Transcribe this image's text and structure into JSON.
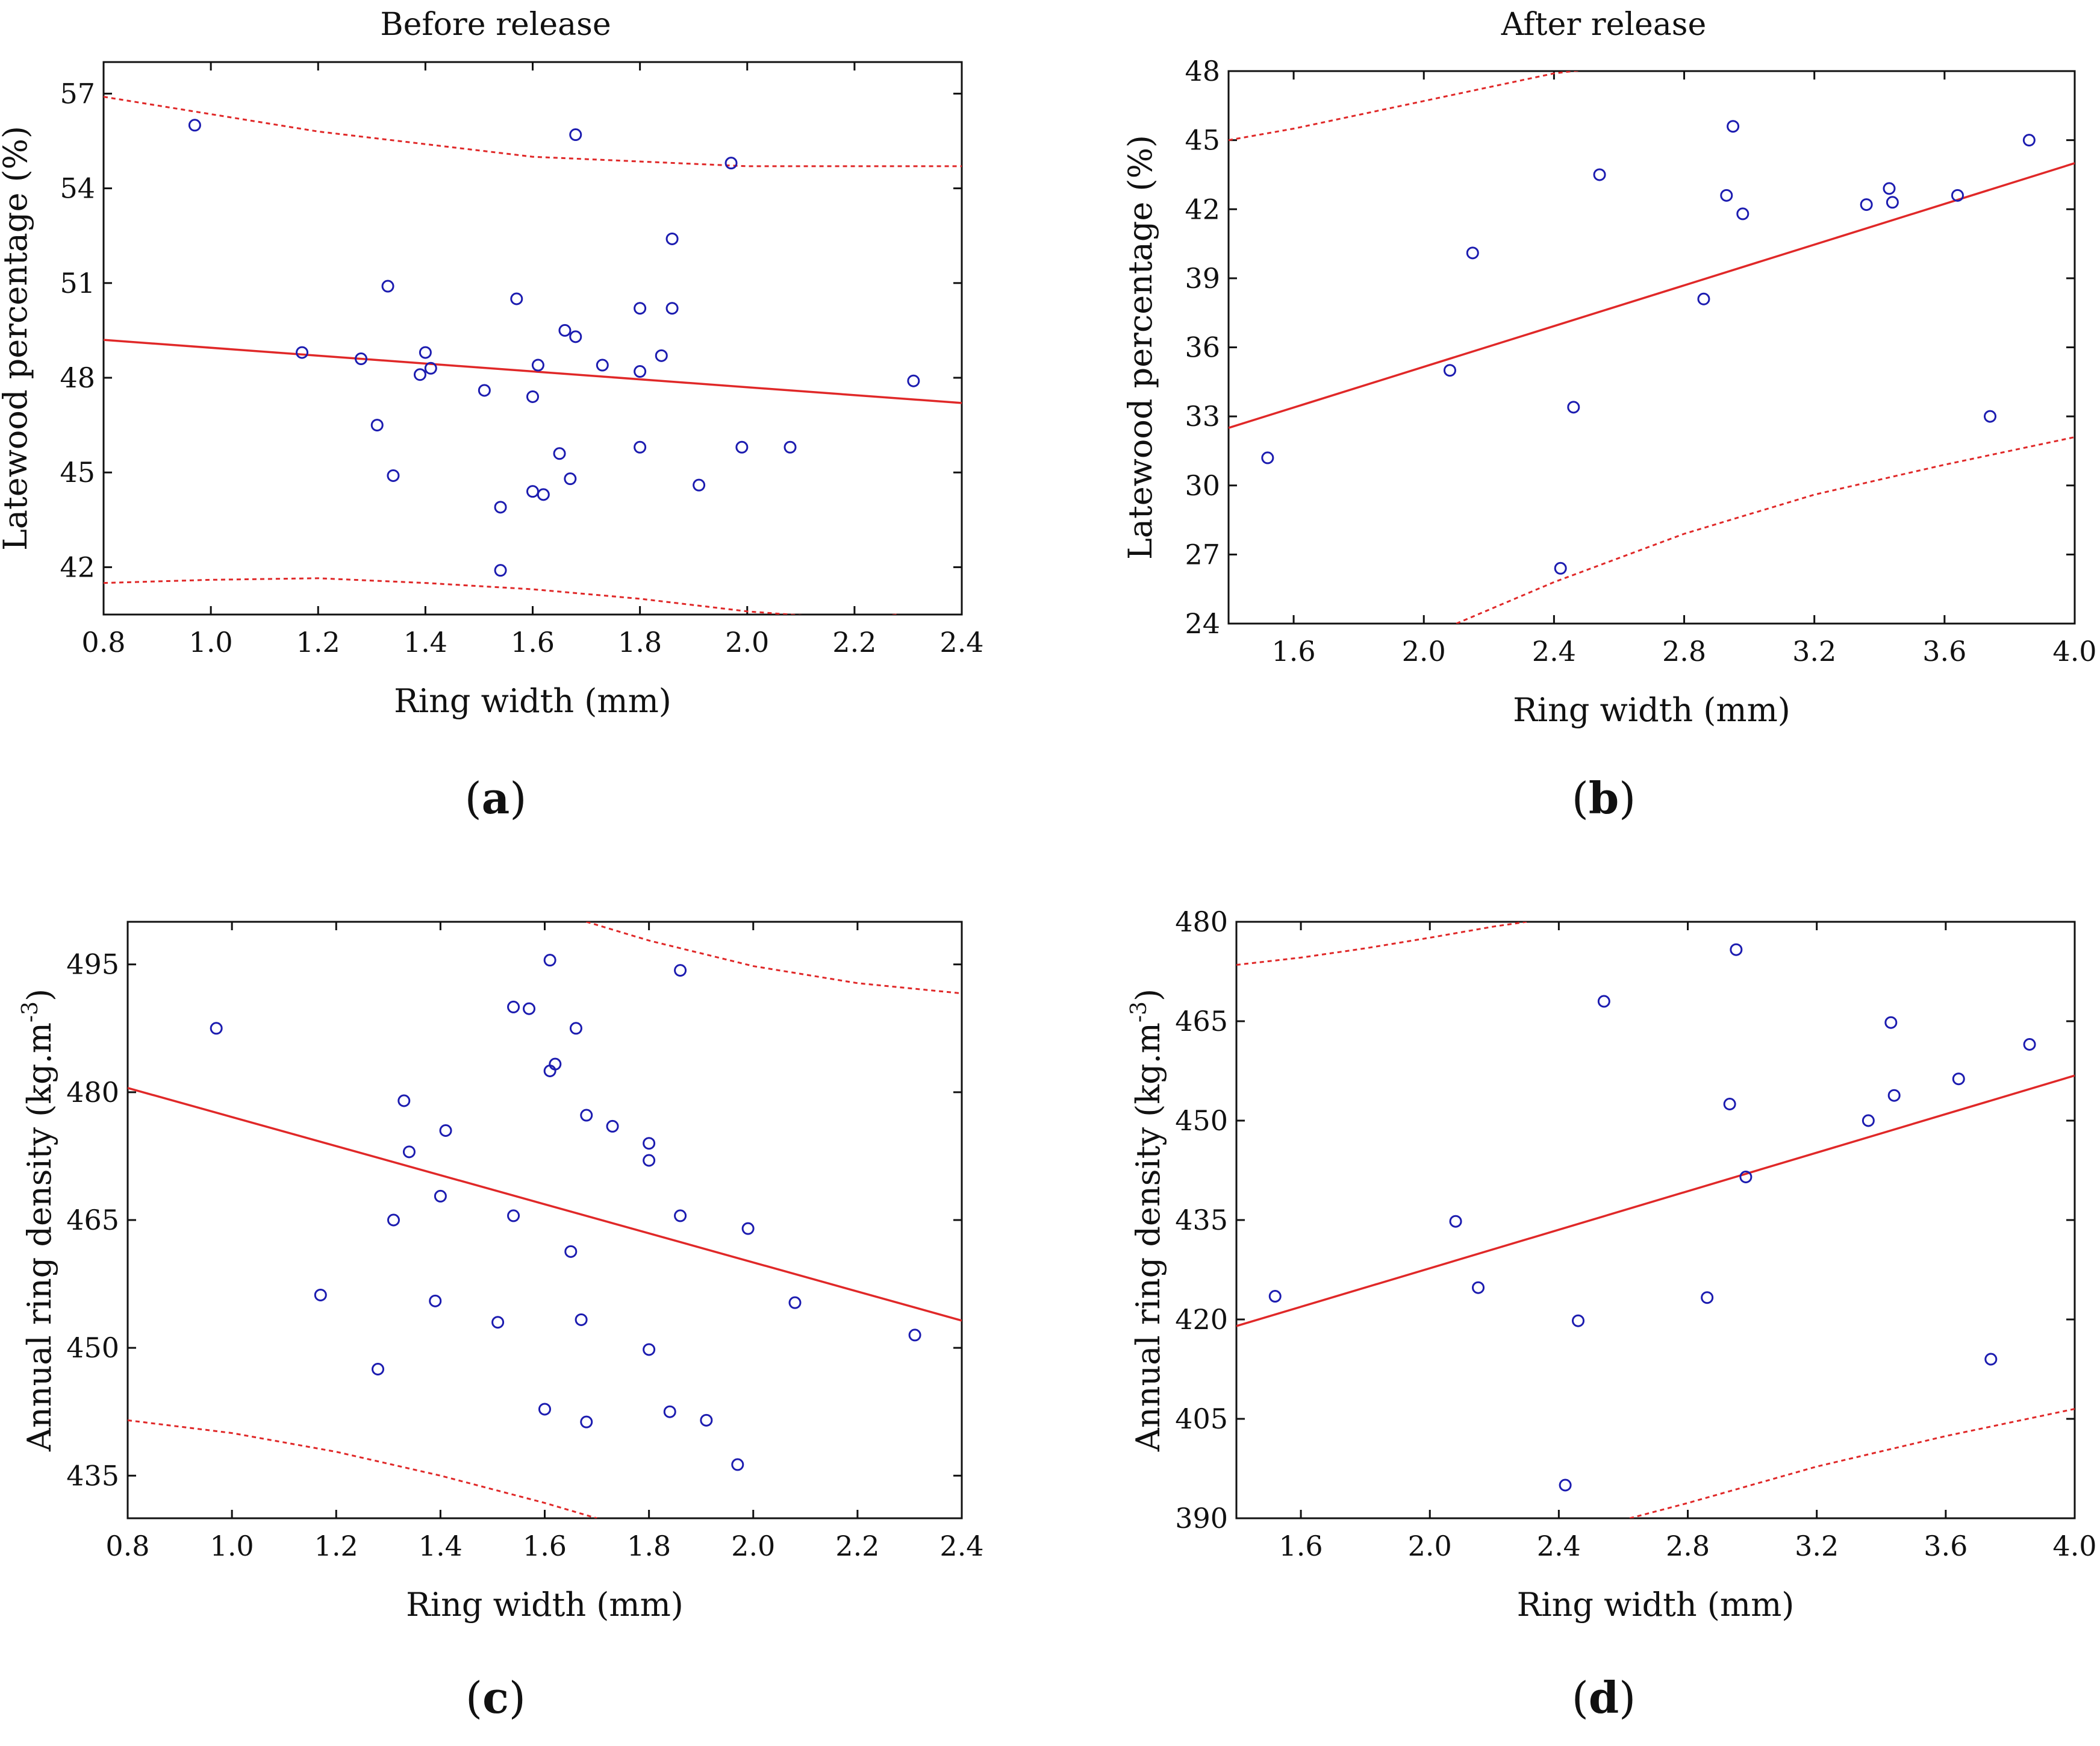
{
  "figure": {
    "column_titles": [
      "Before release",
      "After release"
    ]
  },
  "colors": {
    "fit_line": "#e02828",
    "confidence_band": "#e02828",
    "points": "#1c1cb0",
    "axes": "#111111"
  },
  "chart_data": [
    {
      "id": "a",
      "panel_label": "a",
      "type": "scatter",
      "title": "Before release",
      "xlabel": "Ring width (mm)",
      "ylabel": "Latewood percentage (%)",
      "xlim": [
        0.8,
        2.4
      ],
      "ylim": [
        40.5,
        58
      ],
      "xticks": [
        0.8,
        1.0,
        1.2,
        1.4,
        1.6,
        1.8,
        2.0,
        2.2,
        2.4
      ],
      "xtick_labels": [
        "0.8",
        "1.0",
        "1.2",
        "1.4",
        "1.6",
        "1.8",
        "2.0",
        "2.2",
        "2.4"
      ],
      "yticks": [
        42,
        45,
        48,
        51,
        54,
        57
      ],
      "ytick_labels": [
        "42",
        "45",
        "48",
        "51",
        "54",
        "57"
      ],
      "points": [
        [
          0.97,
          56.0
        ],
        [
          1.17,
          48.8
        ],
        [
          1.28,
          48.6
        ],
        [
          1.31,
          46.5
        ],
        [
          1.33,
          50.9
        ],
        [
          1.34,
          44.9
        ],
        [
          1.39,
          48.1
        ],
        [
          1.4,
          48.8
        ],
        [
          1.41,
          48.3
        ],
        [
          1.51,
          47.6
        ],
        [
          1.54,
          43.9
        ],
        [
          1.54,
          41.9
        ],
        [
          1.57,
          50.5
        ],
        [
          1.6,
          44.4
        ],
        [
          1.6,
          47.4
        ],
        [
          1.61,
          48.4
        ],
        [
          1.62,
          44.3
        ],
        [
          1.65,
          45.6
        ],
        [
          1.66,
          49.5
        ],
        [
          1.67,
          44.8
        ],
        [
          1.68,
          49.3
        ],
        [
          1.68,
          55.7
        ],
        [
          1.73,
          48.4
        ],
        [
          1.8,
          45.8
        ],
        [
          1.8,
          48.2
        ],
        [
          1.8,
          50.2
        ],
        [
          1.84,
          48.7
        ],
        [
          1.86,
          52.4
        ],
        [
          1.86,
          50.2
        ],
        [
          1.91,
          44.6
        ],
        [
          1.97,
          54.8
        ],
        [
          1.99,
          45.8
        ],
        [
          2.08,
          45.8
        ],
        [
          2.31,
          47.9
        ]
      ],
      "fit": {
        "x": [
          0.8,
          2.4
        ],
        "y": [
          49.2,
          47.2
        ]
      },
      "ci_upper": {
        "x": [
          0.8,
          1.2,
          1.6,
          2.0,
          2.4
        ],
        "y": [
          56.9,
          55.8,
          55.0,
          54.7,
          54.7
        ]
      },
      "ci_lower": {
        "x": [
          0.8,
          1.0,
          1.2,
          1.4,
          1.6,
          1.8,
          2.0,
          2.2,
          2.28
        ],
        "y": [
          41.5,
          41.6,
          41.65,
          41.5,
          41.3,
          41.0,
          40.6,
          40.35,
          40.5
        ]
      }
    },
    {
      "id": "b",
      "panel_label": "b",
      "type": "scatter",
      "title": "After release",
      "xlabel": "Ring width (mm)",
      "ylabel": "Latewood percentage (%)",
      "xlim": [
        1.4,
        4.0
      ],
      "ylim": [
        24,
        48
      ],
      "xticks": [
        1.6,
        2.0,
        2.4,
        2.8,
        3.2,
        3.6,
        4.0
      ],
      "xtick_labels": [
        "1.6",
        "2.0",
        "2.4",
        "2.8",
        "3.2",
        "3.6",
        "4.0"
      ],
      "yticks": [
        24,
        27,
        30,
        33,
        36,
        39,
        42,
        45,
        48
      ],
      "ytick_labels": [
        "24",
        "27",
        "30",
        "33",
        "36",
        "39",
        "42",
        "45",
        "48"
      ],
      "points": [
        [
          1.52,
          31.2
        ],
        [
          2.08,
          35.0
        ],
        [
          2.15,
          40.1
        ],
        [
          2.42,
          26.4
        ],
        [
          2.46,
          33.4
        ],
        [
          2.54,
          43.5
        ],
        [
          2.86,
          38.1
        ],
        [
          2.93,
          42.6
        ],
        [
          2.95,
          45.6
        ],
        [
          2.98,
          41.8
        ],
        [
          3.36,
          42.2
        ],
        [
          3.43,
          42.9
        ],
        [
          3.44,
          42.3
        ],
        [
          3.64,
          42.6
        ],
        [
          3.74,
          33.0
        ],
        [
          3.86,
          45.0
        ]
      ],
      "fit": {
        "x": [
          1.4,
          4.0
        ],
        "y": [
          32.5,
          44.0
        ]
      },
      "ci_upper": {
        "x": [
          1.4,
          1.6,
          1.8,
          2.0,
          2.2,
          2.4,
          2.52
        ],
        "y": [
          45.0,
          45.5,
          46.1,
          46.7,
          47.3,
          47.9,
          48.1
        ]
      },
      "ci_lower": {
        "x": [
          2.1,
          2.4,
          2.8,
          3.2,
          3.6,
          4.0
        ],
        "y": [
          24.0,
          25.8,
          27.9,
          29.6,
          30.9,
          32.1
        ]
      }
    },
    {
      "id": "c",
      "panel_label": "c",
      "type": "scatter",
      "title": "",
      "xlabel": "Ring width (mm)",
      "ylabel": "Annual ring density (kg.m",
      "ylabel_sup": "-3",
      "ylabel_end": ")",
      "xlim": [
        0.8,
        2.4
      ],
      "ylim": [
        430,
        500
      ],
      "xticks": [
        0.8,
        1.0,
        1.2,
        1.4,
        1.6,
        1.8,
        2.0,
        2.2,
        2.4
      ],
      "xtick_labels": [
        "0.8",
        "1.0",
        "1.2",
        "1.4",
        "1.6",
        "1.8",
        "2.0",
        "2.2",
        "2.4"
      ],
      "yticks": [
        435,
        450,
        465,
        480,
        495
      ],
      "ytick_labels": [
        "435",
        "450",
        "465",
        "480",
        "495"
      ],
      "points": [
        [
          0.97,
          487.5
        ],
        [
          1.17,
          456.2
        ],
        [
          1.28,
          447.5
        ],
        [
          1.31,
          465.0
        ],
        [
          1.33,
          479.0
        ],
        [
          1.34,
          473.0
        ],
        [
          1.39,
          455.5
        ],
        [
          1.4,
          467.8
        ],
        [
          1.41,
          475.5
        ],
        [
          1.51,
          453.0
        ],
        [
          1.54,
          490.0
        ],
        [
          1.54,
          465.5
        ],
        [
          1.57,
          489.8
        ],
        [
          1.6,
          442.8
        ],
        [
          1.61,
          495.5
        ],
        [
          1.61,
          482.5
        ],
        [
          1.62,
          483.3
        ],
        [
          1.65,
          461.3
        ],
        [
          1.66,
          487.5
        ],
        [
          1.67,
          453.3
        ],
        [
          1.68,
          477.3
        ],
        [
          1.68,
          441.3
        ],
        [
          1.73,
          476.0
        ],
        [
          1.8,
          449.8
        ],
        [
          1.8,
          474.0
        ],
        [
          1.8,
          472.0
        ],
        [
          1.84,
          442.5
        ],
        [
          1.86,
          494.3
        ],
        [
          1.86,
          465.5
        ],
        [
          1.91,
          441.5
        ],
        [
          1.97,
          436.3
        ],
        [
          1.99,
          464.0
        ],
        [
          2.08,
          455.3
        ],
        [
          2.31,
          451.5
        ]
      ],
      "fit": {
        "x": [
          0.8,
          2.4
        ],
        "y": [
          480.5,
          453.2
        ]
      },
      "ci_upper": {
        "x": [
          1.68,
          1.8,
          2.0,
          2.2,
          2.4
        ],
        "y": [
          500,
          497.8,
          494.8,
          492.8,
          491.6
        ]
      },
      "ci_lower": {
        "x": [
          0.8,
          1.0,
          1.2,
          1.4,
          1.6,
          1.7
        ],
        "y": [
          441.5,
          440.0,
          437.8,
          435.0,
          431.8,
          430.0
        ]
      }
    },
    {
      "id": "d",
      "panel_label": "d",
      "type": "scatter",
      "title": "",
      "xlabel": "Ring width (mm)",
      "ylabel": "Annual ring density (kg.m",
      "ylabel_sup": "-3",
      "ylabel_end": ")",
      "xlim": [
        1.4,
        4.0
      ],
      "ylim": [
        390,
        480
      ],
      "xticks": [
        1.6,
        2.0,
        2.4,
        2.8,
        3.2,
        3.6,
        4.0
      ],
      "xtick_labels": [
        "1.6",
        "2.0",
        "2.4",
        "2.8",
        "3.2",
        "3.6",
        "4.0"
      ],
      "yticks": [
        390,
        405,
        420,
        435,
        450,
        465,
        480
      ],
      "ytick_labels": [
        "390",
        "405",
        "420",
        "435",
        "450",
        "465",
        "480"
      ],
      "points": [
        [
          1.52,
          423.5
        ],
        [
          2.08,
          434.8
        ],
        [
          2.15,
          424.8
        ],
        [
          2.42,
          395.0
        ],
        [
          2.46,
          419.8
        ],
        [
          2.54,
          468.0
        ],
        [
          2.86,
          423.3
        ],
        [
          2.93,
          452.5
        ],
        [
          2.95,
          475.8
        ],
        [
          2.98,
          441.5
        ],
        [
          3.36,
          450.0
        ],
        [
          3.43,
          464.8
        ],
        [
          3.44,
          453.8
        ],
        [
          3.64,
          456.3
        ],
        [
          3.74,
          414.0
        ],
        [
          3.86,
          461.5
        ]
      ],
      "fit": {
        "x": [
          1.4,
          4.0
        ],
        "y": [
          419.0,
          456.8
        ]
      },
      "ci_upper": {
        "x": [
          1.4,
          1.6,
          1.8,
          2.0,
          2.2,
          2.3
        ],
        "y": [
          473.5,
          474.6,
          476.0,
          477.6,
          479.3,
          480.0
        ]
      },
      "ci_lower": {
        "x": [
          2.62,
          2.8,
          3.2,
          3.6,
          4.0
        ],
        "y": [
          390.0,
          392.3,
          397.8,
          402.4,
          406.5
        ]
      }
    }
  ]
}
